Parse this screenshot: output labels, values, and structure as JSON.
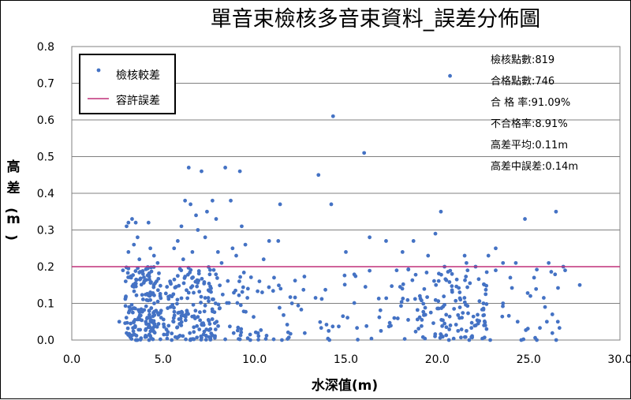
{
  "chart_data": {
    "type": "scatter",
    "title": "單音束檢核多音束資料_誤差分佈圖",
    "xlabel": "水深值(m)",
    "ylabel_chars": [
      "高",
      "差",
      "(",
      "m",
      ")"
    ],
    "xlim": [
      0,
      30
    ],
    "ylim": [
      0,
      0.8
    ],
    "x_ticks": [
      "0.0",
      "5.0",
      "10.0",
      "15.0",
      "20.0",
      "25.0",
      "30.0"
    ],
    "y_ticks": [
      "0.0",
      "0.1",
      "0.2",
      "0.3",
      "0.4",
      "0.5",
      "0.6",
      "0.7",
      "0.8"
    ],
    "grid": "horizontal",
    "legend": {
      "position": "top-left",
      "points_label": "檢核較差",
      "line_label": "容許誤差"
    },
    "tolerance": 0.2,
    "colors": {
      "points": "#4472c4",
      "tolerance": "#c0307a",
      "grid": "#808080"
    },
    "stats": [
      "檢核點數:819",
      "合格點數:746",
      "合 格 率:91.09%",
      "不合格率:8.91%",
      "高差平均:0.11m",
      "高差中誤差:0.14m"
    ],
    "points": [
      [
        2.6,
        0.05
      ],
      [
        2.8,
        0.19
      ],
      [
        3.0,
        0.31
      ],
      [
        3.1,
        0.32
      ],
      [
        3.3,
        0.33
      ],
      [
        3.4,
        0.26
      ],
      [
        3.5,
        0.32
      ],
      [
        3.7,
        0.22
      ],
      [
        3.9,
        0.18
      ],
      [
        4.2,
        0.32
      ],
      [
        4.3,
        0.25
      ],
      [
        4.5,
        0.23
      ],
      [
        4.7,
        0.21
      ],
      [
        3.1,
        0.24
      ],
      [
        3.6,
        0.28
      ],
      [
        5.6,
        0.25
      ],
      [
        5.8,
        0.27
      ],
      [
        6.0,
        0.31
      ],
      [
        6.2,
        0.38
      ],
      [
        6.4,
        0.47
      ],
      [
        6.5,
        0.37
      ],
      [
        6.6,
        0.24
      ],
      [
        6.8,
        0.34
      ],
      [
        6.9,
        0.3
      ],
      [
        7.1,
        0.46
      ],
      [
        7.4,
        0.35
      ],
      [
        7.7,
        0.38
      ],
      [
        7.9,
        0.33
      ],
      [
        8.0,
        0.24
      ],
      [
        8.2,
        0.21
      ],
      [
        8.4,
        0.47
      ],
      [
        8.7,
        0.38
      ],
      [
        9.0,
        0.23
      ],
      [
        9.2,
        0.46
      ],
      [
        9.3,
        0.31
      ],
      [
        9.5,
        0.26
      ],
      [
        10.8,
        0.27
      ],
      [
        11.3,
        0.27
      ],
      [
        11.4,
        0.37
      ],
      [
        10.5,
        0.22
      ],
      [
        8.8,
        0.25
      ],
      [
        7.3,
        0.28
      ],
      [
        6.1,
        0.22
      ],
      [
        13.5,
        0.45
      ],
      [
        14.3,
        0.61
      ],
      [
        14.2,
        0.37
      ],
      [
        15.0,
        0.24
      ],
      [
        16.0,
        0.51
      ],
      [
        16.3,
        0.28
      ],
      [
        17.2,
        0.27
      ],
      [
        18.1,
        0.24
      ],
      [
        18.7,
        0.27
      ],
      [
        19.5,
        0.23
      ],
      [
        19.9,
        0.29
      ],
      [
        20.2,
        0.35
      ],
      [
        20.7,
        0.72
      ],
      [
        20.4,
        0.2
      ],
      [
        21.5,
        0.23
      ],
      [
        21.6,
        0.21
      ],
      [
        22.1,
        0.2
      ],
      [
        22.8,
        0.23
      ],
      [
        23.2,
        0.25
      ],
      [
        23.6,
        0.21
      ],
      [
        24.8,
        0.33
      ],
      [
        26.5,
        0.35
      ],
      [
        26.9,
        0.2
      ],
      [
        26.1,
        0.21
      ],
      [
        24.3,
        0.21
      ],
      [
        11.5,
        0.0
      ],
      [
        14.1,
        0.0
      ],
      [
        24.6,
        0.0
      ],
      [
        25.3,
        0.17
      ],
      [
        26.0,
        0.05
      ],
      [
        26.3,
        0.07
      ],
      [
        26.6,
        0.05
      ],
      [
        27.0,
        0.19
      ],
      [
        27.8,
        0.15
      ],
      [
        25.9,
        0.09
      ],
      [
        24.4,
        0.05
      ],
      [
        23.2,
        0.19
      ],
      [
        23.6,
        0.1
      ],
      [
        22.9,
        0.0
      ],
      [
        24.0,
        0.17
      ],
      [
        25.1,
        0.12
      ]
    ]
  }
}
